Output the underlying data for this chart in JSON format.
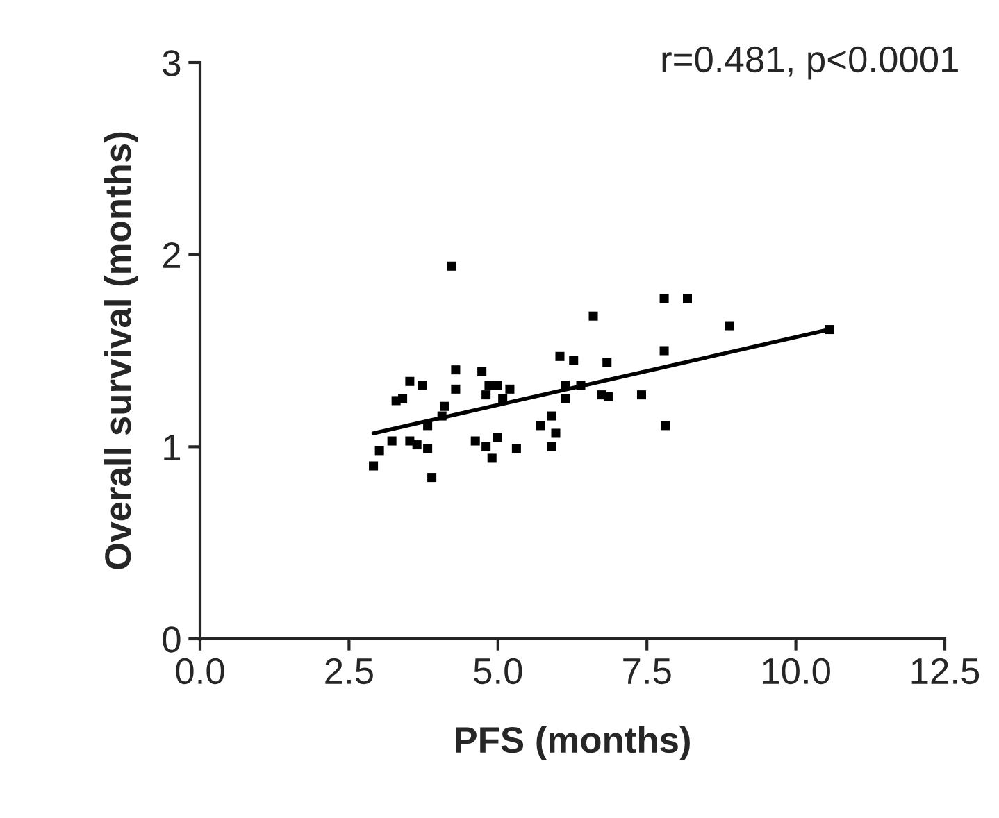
{
  "chart_data": {
    "type": "scatter",
    "xlabel": "PFS (months)",
    "ylabel": "Overall survival (months)",
    "annotations": [
      "r=0.481, p<0.0001"
    ],
    "xlim": [
      0,
      12.5
    ],
    "ylim": [
      0,
      3
    ],
    "xticks": [
      {
        "value": 0,
        "label": "0.0"
      },
      2.5,
      {
        "value": 5,
        "label": "5.0"
      },
      7.5,
      {
        "value": 10,
        "label": "10.0"
      },
      12.5
    ],
    "yticks": [
      0,
      1,
      2,
      3
    ],
    "grid": false,
    "series": [
      {
        "color": "#000000",
        "marker": "square",
        "x": [
          4.22,
          6.6,
          7.79,
          6.04,
          6.27,
          6.83,
          4.29,
          3.52,
          3.73,
          4.73,
          4.85,
          4.29,
          4.99,
          5.2,
          4.8,
          5.08,
          3.29,
          3.4,
          6.13,
          6.13,
          6.39,
          6.74,
          6.85,
          7.41,
          7.79,
          7.81,
          4.1,
          4.06,
          3.82,
          3.22,
          3.01,
          2.91,
          3.52,
          3.64,
          3.82,
          3.89,
          4.62,
          4.8,
          4.99,
          4.9,
          5.31,
          5.71,
          5.9,
          5.97,
          5.9,
          8.18,
          8.88,
          10.56
        ],
        "values": [
          1.94,
          1.68,
          1.77,
          1.47,
          1.45,
          1.44,
          1.4,
          1.34,
          1.32,
          1.39,
          1.32,
          1.3,
          1.32,
          1.3,
          1.27,
          1.25,
          1.24,
          1.25,
          1.32,
          1.25,
          1.32,
          1.27,
          1.26,
          1.27,
          1.5,
          1.11,
          1.21,
          1.16,
          1.11,
          1.03,
          0.98,
          0.9,
          1.03,
          1.01,
          0.99,
          0.84,
          1.03,
          1.0,
          1.05,
          0.94,
          0.99,
          1.11,
          1.16,
          1.07,
          1.0,
          1.77,
          1.63,
          1.61
        ]
      },
      {
        "type": "line",
        "color": "#000000",
        "x": [
          2.91,
          10.56
        ],
        "values": [
          1.07,
          1.61
        ]
      }
    ]
  }
}
